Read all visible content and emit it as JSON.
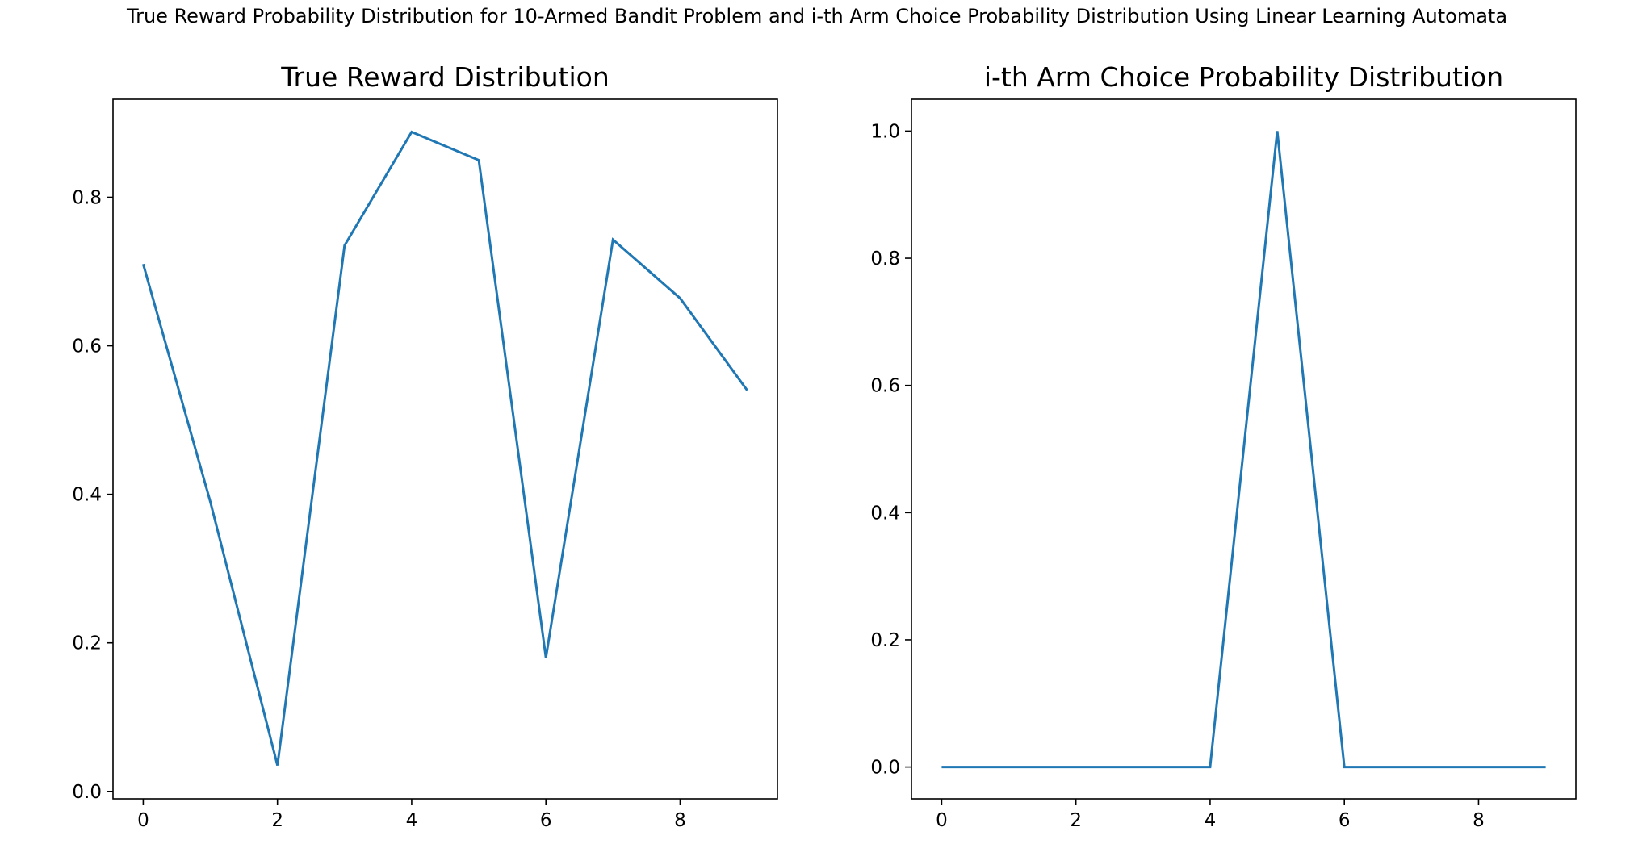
{
  "figure": {
    "suptitle": "True Reward Probability Distribution for 10-Armed Bandit Problem and i-th Arm Choice Probability Distribution Using Linear Learning Automata"
  },
  "colors": {
    "line": "#1f77b4",
    "axes": "#000000"
  },
  "chart_data": [
    {
      "type": "line",
      "title": "True Reward Distribution",
      "xlabel": "",
      "ylabel": "",
      "x": [
        0,
        1,
        2,
        3,
        4,
        5,
        6,
        7,
        8,
        9
      ],
      "series": [
        {
          "values": [
            0.71,
            0.39,
            0.035,
            0.735,
            0.888,
            0.85,
            0.18,
            0.743,
            0.664,
            0.54
          ]
        }
      ],
      "xlim": [
        -0.45,
        9.45
      ],
      "ylim": [
        -0.01,
        0.932
      ],
      "xticks": [
        0,
        2,
        4,
        6,
        8
      ],
      "yticks": [
        0.0,
        0.2,
        0.4,
        0.6,
        0.8
      ],
      "ytick_labels": [
        "0.0",
        "0.2",
        "0.4",
        "0.6",
        "0.8"
      ],
      "grid": false,
      "legend": "none"
    },
    {
      "type": "line",
      "title": "i-th Arm Choice Probability Distribution",
      "xlabel": "",
      "ylabel": "",
      "x": [
        0,
        1,
        2,
        3,
        4,
        5,
        6,
        7,
        8,
        9
      ],
      "series": [
        {
          "values": [
            0,
            0,
            0,
            0,
            0,
            1,
            0,
            0,
            0,
            0
          ]
        }
      ],
      "xlim": [
        -0.45,
        9.45
      ],
      "ylim": [
        -0.05,
        1.05
      ],
      "xticks": [
        0,
        2,
        4,
        6,
        8
      ],
      "yticks": [
        0.0,
        0.2,
        0.4,
        0.6,
        0.8,
        1.0
      ],
      "ytick_labels": [
        "0.0",
        "0.2",
        "0.4",
        "0.6",
        "0.8",
        "1.0"
      ],
      "grid": false,
      "legend": "none"
    }
  ]
}
